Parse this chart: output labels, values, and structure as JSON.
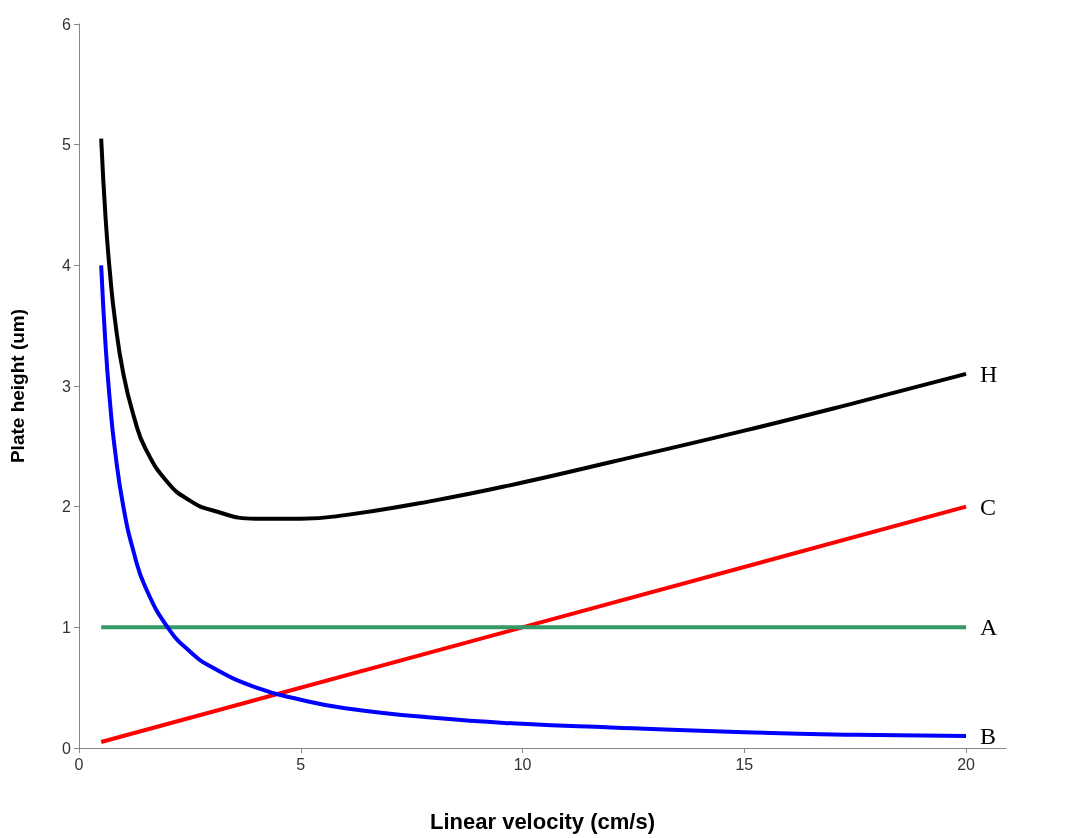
{
  "chart_data": {
    "type": "line",
    "xlabel": "Linear velocity (cm/s)",
    "ylabel": "Plate height (um)",
    "xlim": [
      0,
      20.9
    ],
    "xticks": [
      0,
      5,
      10,
      15,
      20
    ],
    "ylim": [
      0,
      6
    ],
    "yticks": [
      0,
      1,
      2,
      3,
      4,
      5,
      6
    ],
    "grid": false,
    "legend": false,
    "marker": "none",
    "line_style": "solid",
    "series": [
      {
        "name": "H",
        "color": "#000000",
        "x": [
          0.5,
          0.6,
          0.7,
          0.8,
          1,
          1.25,
          1.5,
          2,
          2.5,
          3,
          4,
          5,
          6,
          8,
          10,
          12,
          15,
          17.5,
          20
        ],
        "values": [
          5.05,
          4.39,
          3.93,
          3.58,
          3.1,
          2.73,
          2.48,
          2.2,
          2.05,
          1.97,
          1.9,
          1.9,
          1.93,
          2.05,
          2.2,
          2.37,
          2.63,
          2.86,
          3.1
        ]
      },
      {
        "name": "C",
        "color": "#ff0000",
        "x": [
          0.5,
          20
        ],
        "values": [
          0.05,
          2
        ]
      },
      {
        "name": "A",
        "color": "#339966",
        "x": [
          0.5,
          20
        ],
        "values": [
          1,
          1
        ]
      },
      {
        "name": "B",
        "color": "#0000ff",
        "x": [
          0.5,
          0.6,
          0.7,
          0.8,
          1,
          1.25,
          1.5,
          2,
          2.5,
          3,
          4,
          5,
          6,
          8,
          10,
          12,
          15,
          17.5,
          20
        ],
        "values": [
          4,
          3.33,
          2.86,
          2.5,
          2,
          1.6,
          1.33,
          1,
          0.8,
          0.67,
          0.5,
          0.4,
          0.33,
          0.25,
          0.2,
          0.17,
          0.13,
          0.11,
          0.1
        ]
      }
    ]
  }
}
